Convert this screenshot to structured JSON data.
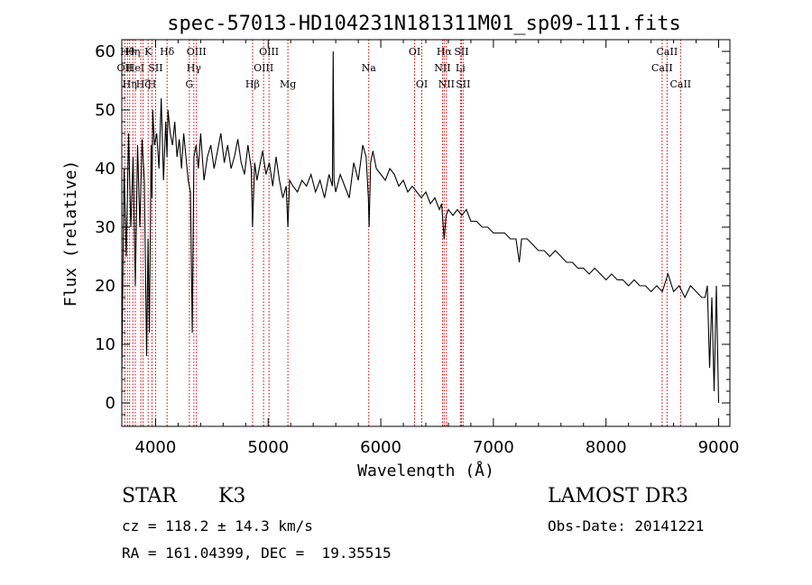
{
  "chart_data": {
    "type": "line",
    "title": "spec-57013-HD104231N181311M01_sp09-111.fits",
    "xlabel": "Wavelength (Å)",
    "ylabel": "Flux (relative)",
    "xlim": [
      3700,
      9100
    ],
    "ylim": [
      -4,
      62
    ],
    "xticks": [
      4000,
      5000,
      6000,
      7000,
      8000,
      9000
    ],
    "yticks": [
      0,
      10,
      20,
      30,
      40,
      50,
      60
    ],
    "grid": false,
    "line_color": "#000000",
    "marker_color": "#cc0000",
    "series": [
      {
        "name": "flux",
        "x": [
          3700,
          3720,
          3740,
          3760,
          3780,
          3800,
          3820,
          3840,
          3860,
          3880,
          3900,
          3920,
          3933,
          3945,
          3960,
          3968,
          3975,
          3990,
          4010,
          4030,
          4050,
          4070,
          4090,
          4101,
          4110,
          4130,
          4150,
          4170,
          4190,
          4210,
          4230,
          4250,
          4270,
          4290,
          4310,
          4326,
          4340,
          4360,
          4380,
          4400,
          4430,
          4460,
          4490,
          4520,
          4550,
          4580,
          4610,
          4640,
          4670,
          4700,
          4730,
          4760,
          4790,
          4820,
          4850,
          4861,
          4880,
          4900,
          4920,
          4950,
          4980,
          5010,
          5040,
          5070,
          5100,
          5130,
          5160,
          5175,
          5190,
          5220,
          5260,
          5300,
          5340,
          5380,
          5420,
          5460,
          5500,
          5540,
          5570,
          5577,
          5584,
          5600,
          5640,
          5680,
          5720,
          5760,
          5800,
          5840,
          5870,
          5890,
          5896,
          5910,
          5930,
          5960,
          6000,
          6040,
          6080,
          6120,
          6160,
          6200,
          6240,
          6280,
          6320,
          6360,
          6400,
          6440,
          6480,
          6520,
          6540,
          6563,
          6580,
          6600,
          6640,
          6680,
          6720,
          6760,
          6800,
          6850,
          6900,
          6950,
          7000,
          7050,
          7100,
          7150,
          7200,
          7230,
          7250,
          7300,
          7350,
          7400,
          7450,
          7500,
          7550,
          7600,
          7650,
          7700,
          7750,
          7800,
          7850,
          7900,
          7950,
          8000,
          8050,
          8100,
          8150,
          8200,
          8250,
          8300,
          8350,
          8400,
          8450,
          8500,
          8550,
          8600,
          8650,
          8700,
          8750,
          8800,
          8850,
          8880,
          8900,
          8920,
          8940,
          8960,
          8980,
          9000
        ],
        "y": [
          5,
          40,
          25,
          46,
          30,
          42,
          20,
          44,
          30,
          45,
          38,
          8,
          28,
          12,
          44,
          35,
          50,
          44,
          46,
          40,
          52,
          38,
          48,
          42,
          50,
          46,
          44,
          48,
          42,
          45,
          40,
          46,
          42,
          38,
          36,
          12,
          42,
          44,
          40,
          46,
          38,
          42,
          44,
          40,
          43,
          46,
          41,
          44,
          40,
          42,
          45,
          41,
          39,
          44,
          40,
          30,
          41,
          38,
          40,
          43,
          39,
          41,
          37,
          42,
          38,
          35,
          37,
          30,
          38,
          37,
          36,
          38,
          37,
          39,
          36,
          38,
          35,
          39,
          37,
          60,
          38,
          36,
          39,
          37,
          35,
          41,
          38,
          44,
          42,
          35,
          30,
          41,
          43,
          40,
          39,
          38,
          40,
          39,
          37,
          38,
          36,
          37,
          36,
          35,
          36,
          34,
          35,
          33,
          34,
          28,
          32,
          33,
          32,
          33,
          32,
          33,
          31,
          31,
          30,
          30,
          29,
          29,
          29,
          28,
          28,
          24,
          28,
          28,
          27,
          26,
          26,
          25,
          26,
          25,
          24,
          24,
          23,
          23,
          22,
          23,
          22,
          21,
          22,
          21,
          21,
          20,
          21,
          20,
          20,
          19,
          20,
          19,
          22,
          19,
          20,
          18,
          20,
          19,
          18,
          18,
          20,
          6,
          18,
          2,
          20,
          0
        ]
      }
    ],
    "line_markers": [
      {
        "wl": 3727,
        "label": "OII",
        "row": 2
      },
      {
        "wl": 3750,
        "label": "Hθ",
        "row": 1
      },
      {
        "wl": 3770,
        "label": "Hη",
        "row": 3
      },
      {
        "wl": 3798,
        "label": "Hη",
        "row": 1
      },
      {
        "wl": 3820,
        "label": "HeI",
        "row": 2
      },
      {
        "wl": 3869,
        "label": "",
        "row": 0
      },
      {
        "wl": 3889,
        "label": "Hζ",
        "row": 3
      },
      {
        "wl": 3934,
        "label": "K",
        "row": 1
      },
      {
        "wl": 3968,
        "label": "H",
        "row": 3
      },
      {
        "wl": 4000,
        "label": "SII",
        "row": 2
      },
      {
        "wl": 4102,
        "label": "Hδ",
        "row": 1
      },
      {
        "wl": 4300,
        "label": "G",
        "row": 3
      },
      {
        "wl": 4340,
        "label": "Hγ",
        "row": 2
      },
      {
        "wl": 4363,
        "label": "OIII",
        "row": 1
      },
      {
        "wl": 4861,
        "label": "Hβ",
        "row": 3
      },
      {
        "wl": 4959,
        "label": "OIII",
        "row": 2
      },
      {
        "wl": 5007,
        "label": "OIII",
        "row": 1
      },
      {
        "wl": 5175,
        "label": "Mg",
        "row": 3
      },
      {
        "wl": 5893,
        "label": "Na",
        "row": 2
      },
      {
        "wl": 6300,
        "label": "OI",
        "row": 1
      },
      {
        "wl": 6364,
        "label": "OI",
        "row": 3
      },
      {
        "wl": 6548,
        "label": "NII",
        "row": 2
      },
      {
        "wl": 6563,
        "label": "Hα",
        "row": 1
      },
      {
        "wl": 6583,
        "label": "NII",
        "row": 3
      },
      {
        "wl": 6707,
        "label": "Li",
        "row": 2
      },
      {
        "wl": 6716,
        "label": "SII",
        "row": 1
      },
      {
        "wl": 6731,
        "label": "SII",
        "row": 3
      },
      {
        "wl": 8498,
        "label": "CaII",
        "row": 2
      },
      {
        "wl": 8542,
        "label": "CaII",
        "row": 1
      },
      {
        "wl": 8662,
        "label": "CaII",
        "row": 3
      }
    ]
  },
  "info": {
    "class_label": "STAR",
    "subclass": "K3",
    "survey": "LAMOST DR3",
    "cz": "cz = 118.2 ± 14.3 km/s",
    "obs_date": "Obs-Date: 20141221",
    "coords": "RA = 161.04399, DEC =  19.35515"
  }
}
